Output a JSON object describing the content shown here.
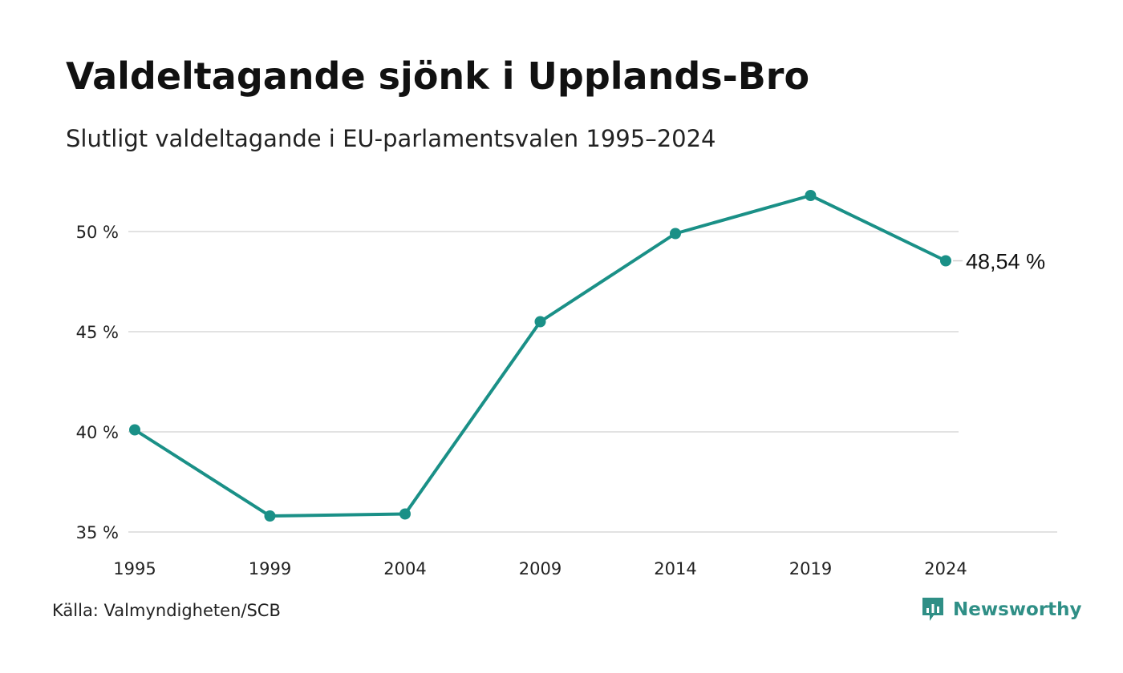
{
  "title": "Valdeltagande sjönk i Upplands-Bro",
  "subtitle": "Slutligt valdeltagande i EU-parlamentsvalen 1995–2024",
  "source": "Källa: Valmyndigheten/SCB",
  "brand": {
    "name": "Newsworthy",
    "icon": "newsworthy-logo-icon"
  },
  "colors": {
    "line": "#1a9087",
    "grid": "#e2e2e2",
    "brand": "#2f8f86"
  },
  "chart_data": {
    "type": "line",
    "title": "Valdeltagande sjönk i Upplands-Bro",
    "subtitle": "Slutligt valdeltagande i EU-parlamentsvalen 1995–2024",
    "xlabel": "",
    "ylabel": "",
    "x": [
      "1995",
      "1999",
      "2004",
      "2009",
      "2014",
      "2019",
      "2024"
    ],
    "series": [
      {
        "values": [
          40.1,
          35.8,
          35.9,
          45.5,
          49.9,
          51.8,
          48.54
        ]
      }
    ],
    "ylim": [
      35,
      52
    ],
    "y_ticks": [
      35,
      40,
      45,
      50
    ],
    "y_tick_labels": [
      "35 %",
      "40 %",
      "45 %",
      "50 %"
    ],
    "end_label": "48,54 %",
    "grid": true,
    "legend": "none"
  }
}
